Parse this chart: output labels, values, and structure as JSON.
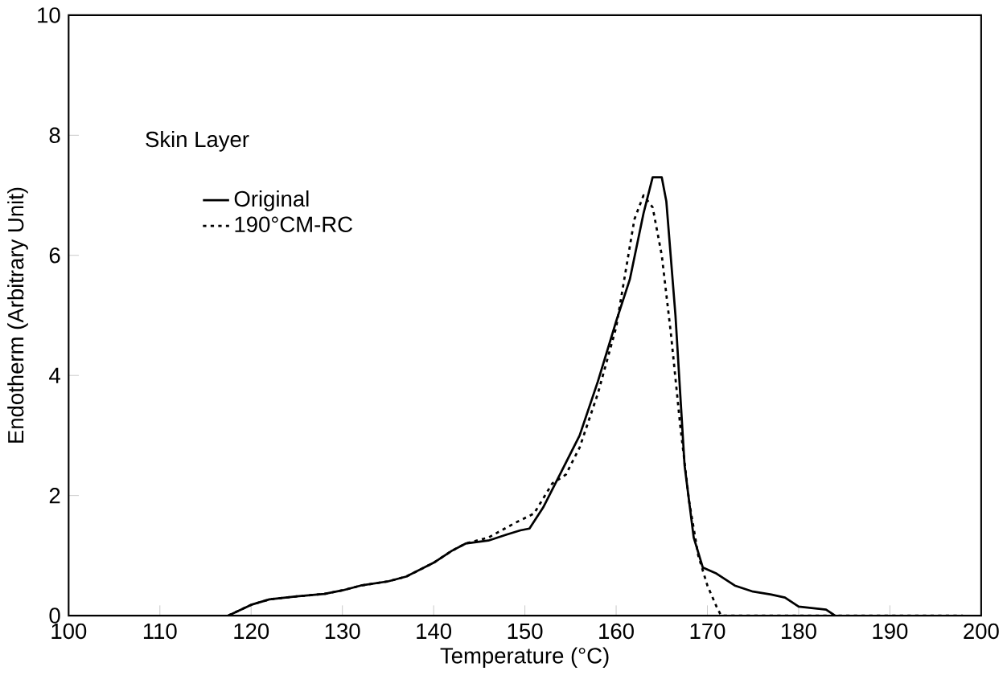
{
  "chart_data": {
    "type": "line",
    "xlabel": "Temperature (°C)",
    "ylabel": "Endotherm (Arbitrary Unit)",
    "annotations": [
      "Skin Layer"
    ],
    "xlim": [
      100,
      200
    ],
    "ylim": [
      0,
      10
    ],
    "xticks": [
      100,
      110,
      120,
      130,
      140,
      150,
      160,
      170,
      180,
      190,
      200
    ],
    "yticks": [
      0,
      2,
      4,
      6,
      8,
      10
    ],
    "grid": false,
    "legend": "top left",
    "marker": "none",
    "series": [
      {
        "name": "Original",
        "color": "#000000",
        "line_style": "solid",
        "x": [
          117.5,
          120,
          122,
          125,
          128,
          130,
          132,
          135,
          137,
          140,
          142,
          143.5,
          146,
          148,
          149.5,
          150.5,
          152,
          154,
          156,
          158,
          160,
          161.5,
          163,
          164,
          165,
          165.5,
          166.5,
          167.5,
          168.5,
          169.5,
          171,
          173,
          175,
          177,
          178.5,
          180,
          183,
          184
        ],
        "values": [
          0,
          0.18,
          0.27,
          0.32,
          0.36,
          0.42,
          0.5,
          0.57,
          0.65,
          0.88,
          1.08,
          1.2,
          1.25,
          1.35,
          1.42,
          1.45,
          1.8,
          2.4,
          3.0,
          3.9,
          4.9,
          5.6,
          6.7,
          7.3,
          7.3,
          6.9,
          5.0,
          2.5,
          1.3,
          0.8,
          0.7,
          0.5,
          0.4,
          0.35,
          0.3,
          0.15,
          0.1,
          0
        ]
      },
      {
        "name": "190°CM-RC",
        "color": "#000000",
        "line_style": "dotted",
        "x": [
          117.5,
          120,
          122,
          125,
          128,
          130,
          132,
          135,
          137,
          140,
          142,
          143.5,
          146,
          149,
          151,
          153,
          154.5,
          156,
          158,
          160,
          161,
          162,
          163,
          164,
          165,
          166,
          167,
          168,
          169,
          170,
          171,
          171.5,
          198
        ],
        "values": [
          0,
          0.18,
          0.27,
          0.32,
          0.36,
          0.42,
          0.5,
          0.57,
          0.65,
          0.88,
          1.08,
          1.2,
          1.3,
          1.55,
          1.7,
          2.2,
          2.35,
          2.8,
          3.7,
          4.8,
          5.7,
          6.6,
          7.0,
          6.8,
          6.0,
          4.7,
          3.2,
          1.9,
          1.0,
          0.5,
          0.15,
          0,
          0
        ]
      }
    ]
  }
}
